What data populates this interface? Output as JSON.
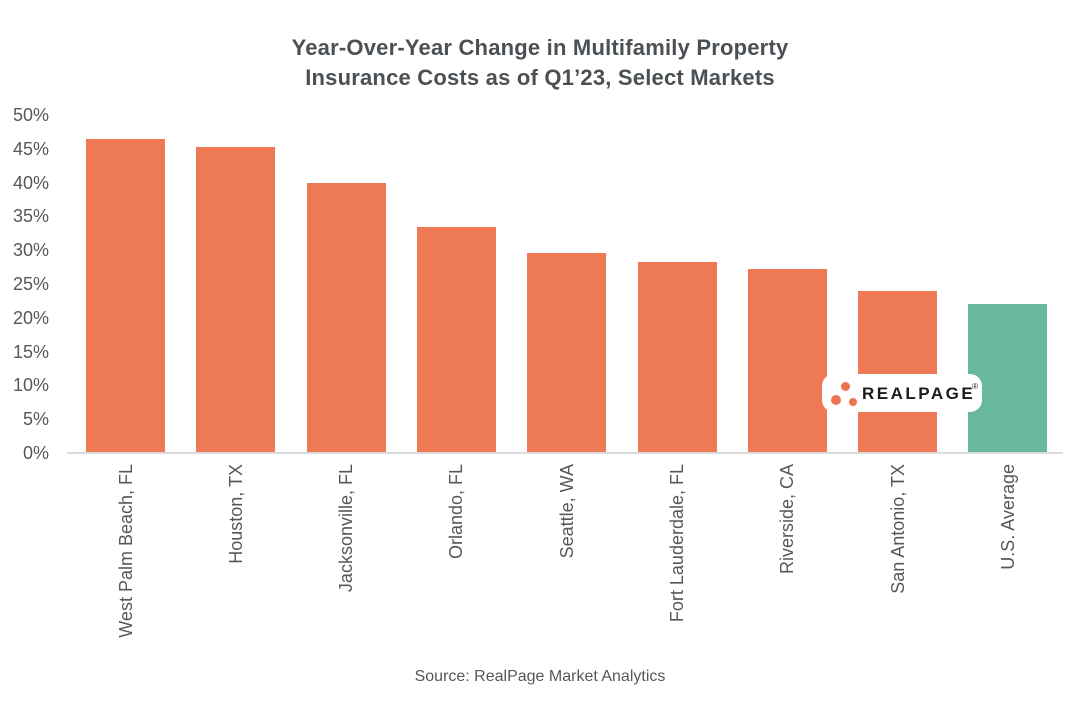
{
  "chart_data": {
    "type": "bar",
    "title_line1": "Year-Over-Year Change in Multifamily Property",
    "title_line2": "Insurance Costs as of Q1’23, Select Markets",
    "categories": [
      "West Palm Beach, FL",
      "Houston, TX",
      "Jacksonville, FL",
      "Orlando, FL",
      "Seattle, WA",
      "Fort Lauderdale, FL",
      "Riverside, CA",
      "San Antonio, TX",
      "U.S. Average"
    ],
    "values": [
      46.5,
      45.2,
      40.0,
      33.4,
      29.6,
      28.2,
      27.2,
      24.0,
      22.0
    ],
    "bar_colors": [
      "#ED7A55",
      "#ED7A55",
      "#ED7A55",
      "#ED7A55",
      "#ED7A55",
      "#ED7A55",
      "#ED7A55",
      "#ED7A55",
      "#68B79E"
    ],
    "ylim": [
      0,
      50
    ],
    "ytick_labels": [
      "0%",
      "5%",
      "10%",
      "15%",
      "20%",
      "25%",
      "30%",
      "35%",
      "40%",
      "45%",
      "50%"
    ],
    "grid": false,
    "legend": "none",
    "xlabel": "",
    "ylabel": "",
    "source": "Source: RealPage Market Analytics"
  },
  "logo": {
    "text": "REALPAGE",
    "trademark": "®"
  },
  "colors": {
    "bar_orange": "#ED7A55",
    "bar_green": "#68B79E",
    "title_text": "#4B5054",
    "axis_text": "#54585C",
    "axis_line": "#DBDBDB",
    "logo_background": "#FFFFFF",
    "logo_dot": "#EC744E",
    "logo_text": "#1B1B1B"
  }
}
